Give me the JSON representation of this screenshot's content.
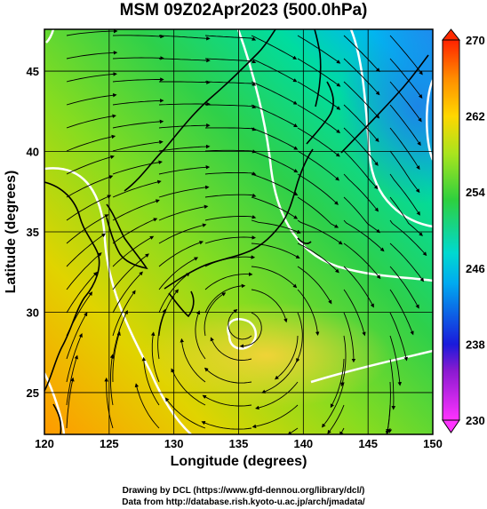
{
  "title": "MSM 09Z02Apr2023 (500.0hPa)",
  "axes": {
    "xlabel": "Longitude (degrees)",
    "ylabel": "Latitude  (degrees)",
    "x_ticks": [
      "120",
      "125",
      "130",
      "135",
      "140",
      "145",
      "150"
    ],
    "y_ticks": [
      "25",
      "30",
      "35",
      "40",
      "45"
    ],
    "xlim": [
      120,
      150
    ],
    "ylim": [
      22.4,
      47.6
    ]
  },
  "colorbar": {
    "ticks": [
      "230",
      "238",
      "246",
      "254",
      "262",
      "270"
    ],
    "range": [
      230,
      270
    ],
    "colors": [
      "#ff33ff",
      "#1a1adb",
      "#00b4f0",
      "#00d7a6",
      "#3ecf3e",
      "#b4e61e",
      "#ffd700",
      "#ff8c00",
      "#ff2a00"
    ]
  },
  "credits": {
    "line1": "Drawing by DCL (https://www.gfd-dennou.org/library/dcl/)",
    "line2": "Data from http://database.rish.kyoto-u.ac.jp/arch/jmadata/"
  }
}
